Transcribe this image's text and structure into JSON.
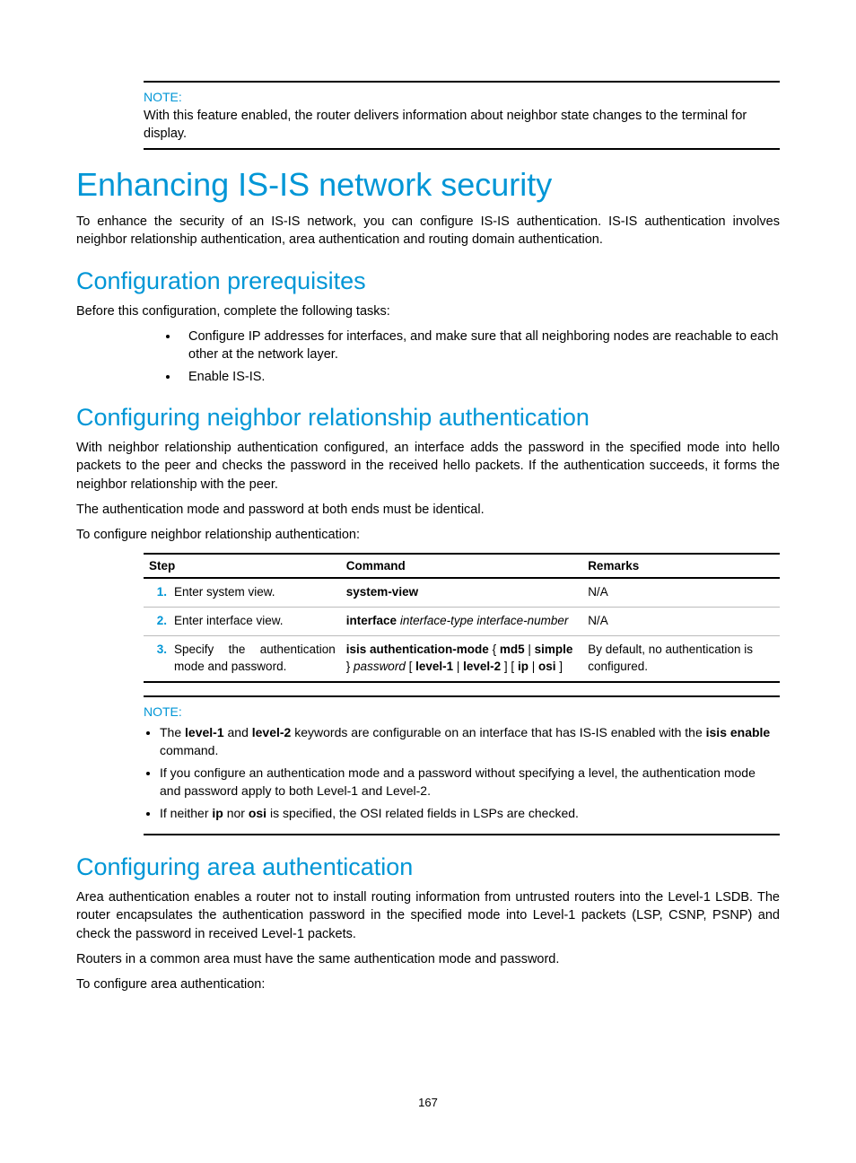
{
  "colors": {
    "accent": "#0096d6",
    "text": "#000000",
    "rule_light": "#bbbbbb",
    "rule_heavy": "#000000",
    "background": "#ffffff"
  },
  "typography": {
    "body_family": "Arial, Helvetica, sans-serif",
    "body_size_pt": 11,
    "h1_size_pt": 27,
    "h2_size_pt": 20,
    "note_label_size_pt": 10.5
  },
  "page_number": "167",
  "note_top": {
    "label": "NOTE:",
    "text": "With this feature enabled, the router delivers information about neighbor state changes to the terminal for display."
  },
  "h1": "Enhancing IS-IS network security",
  "intro_para": "To enhance the security of an IS-IS network, you can configure IS-IS authentication. IS-IS authentication involves neighbor relationship authentication, area authentication and routing domain authentication.",
  "prereq": {
    "heading": "Configuration prerequisites",
    "intro": "Before this configuration, complete the following tasks:",
    "bullets": [
      "Configure IP addresses for interfaces, and make sure that all neighboring nodes are reachable to each other at the network layer.",
      "Enable IS-IS."
    ]
  },
  "neighbor": {
    "heading": "Configuring neighbor relationship authentication",
    "p1": "With neighbor relationship authentication configured, an interface adds the password in the specified mode into hello packets to the peer and checks the password in the received hello packets. If the authentication succeeds, it forms the neighbor relationship with the peer.",
    "p2": "The authentication mode and password at both ends must be identical.",
    "p3": "To configure neighbor relationship authentication:",
    "table": {
      "columns": [
        "Step",
        "Command",
        "Remarks"
      ],
      "col_widths_pct": [
        31,
        38,
        31
      ],
      "rows": [
        {
          "num": "1.",
          "step": "Enter system view.",
          "command_html": "<span class=\"bold\">system-view</span>",
          "remarks": "N/A"
        },
        {
          "num": "2.",
          "step": "Enter interface view.",
          "command_html": "<span class=\"bold\">interface</span> <span class=\"ital\">interface-type interface-number</span>",
          "remarks": "N/A"
        },
        {
          "num": "3.",
          "step": "Specify the authentication mode and password.",
          "command_html": "<span class=\"bold\">isis authentication-mode</span> { <span class=\"bold\">md5</span> | <span class=\"bold\">simple</span> } <span class=\"ital\">password</span> [ <span class=\"bold\">level-1</span> | <span class=\"bold\">level-2</span> ] [ <span class=\"bold\">ip</span> | <span class=\"bold\">osi</span> ]",
          "remarks": "By default, no authentication is configured."
        }
      ]
    },
    "note": {
      "label": "NOTE:",
      "bullets_html": [
        "The <span class=\"bold\">level-1</span> and <span class=\"bold\">level-2</span> keywords are configurable on an interface that has IS-IS enabled with the <span class=\"bold\">isis enable</span> command.",
        "If you configure an authentication mode and a password without specifying a level, the authentication mode and password apply to both Level-1 and Level-2.",
        "If neither <span class=\"bold\">ip</span> nor <span class=\"bold\">osi</span> is specified, the OSI related fields in LSPs are checked."
      ]
    }
  },
  "area": {
    "heading": "Configuring area authentication",
    "p1": "Area authentication enables a router not to install routing information from untrusted routers into the Level-1 LSDB. The router encapsulates the authentication password in the specified mode into Level-1 packets (LSP, CSNP, PSNP) and check the password in received Level-1 packets.",
    "p2": "Routers in a common area must have the same authentication mode and password.",
    "p3": "To configure area authentication:"
  }
}
